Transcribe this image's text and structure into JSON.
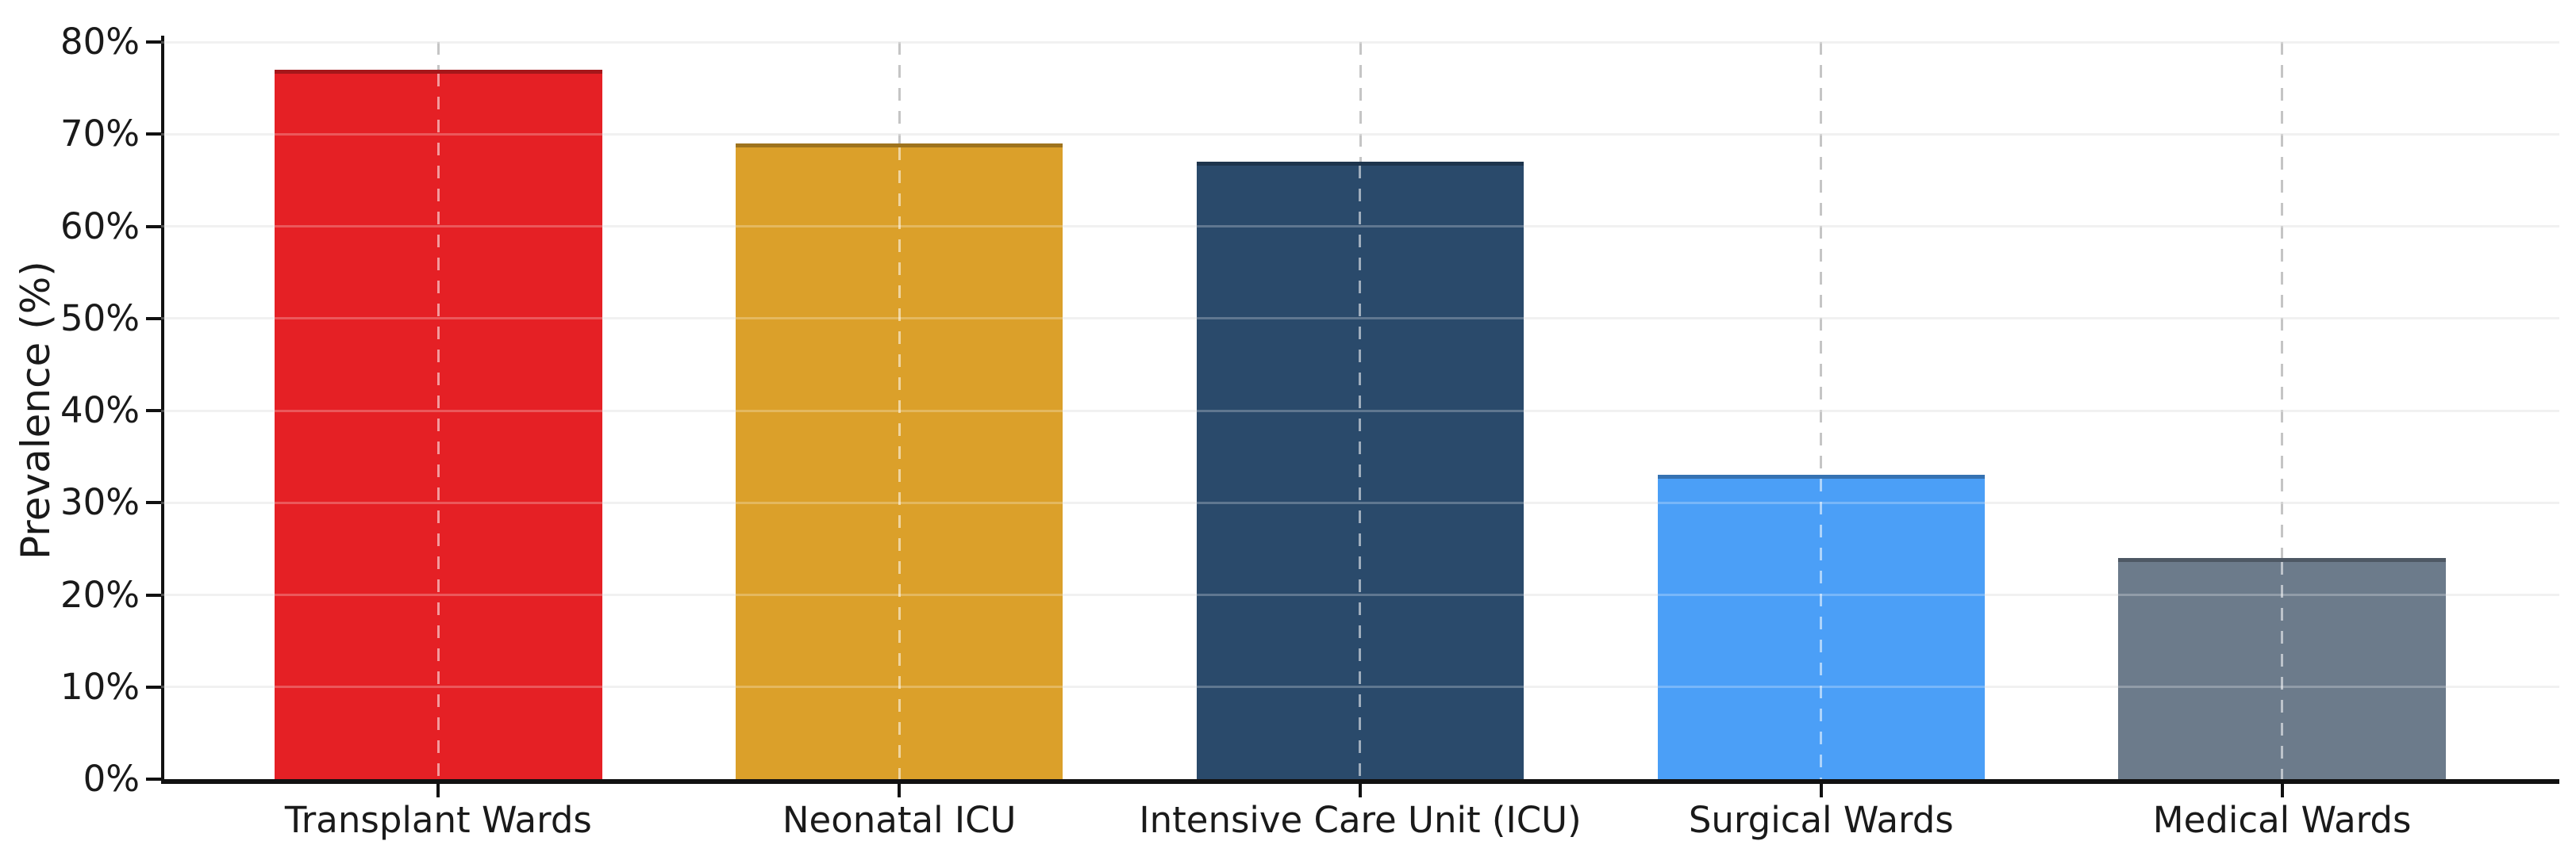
{
  "chart_data": {
    "type": "bar",
    "title": "",
    "categories": [
      "Transplant Wards",
      "Neonatal ICU",
      "Intensive Care Unit (ICU)",
      "Surgical Wards",
      "Medical Wards"
    ],
    "values": [
      77,
      69,
      67,
      33,
      24
    ],
    "unit": "%",
    "bar_colors": [
      "#E52025",
      "#DBA02A",
      "#2A4A6B",
      "#4B9FF7",
      "#6C7B8B"
    ],
    "xlabel": "",
    "ylabel": "Prevalence (%)",
    "ylim": [
      0,
      80
    ],
    "yticks": [
      0,
      10,
      20,
      30,
      40,
      50,
      60,
      70,
      80
    ],
    "ytick_labels": [
      "0%",
      "10%",
      "20%",
      "30%",
      "40%",
      "50%",
      "60%",
      "70%",
      "80%"
    ],
    "legend": "none",
    "grid": {
      "horizontal": "solid",
      "vertical": "dashed",
      "hgrid_color": "#ececec",
      "vgrid_color": "#c5c5c5"
    },
    "background": "#ffffff",
    "axis_color": "#111111",
    "text_color": "#1a1a1a"
  }
}
